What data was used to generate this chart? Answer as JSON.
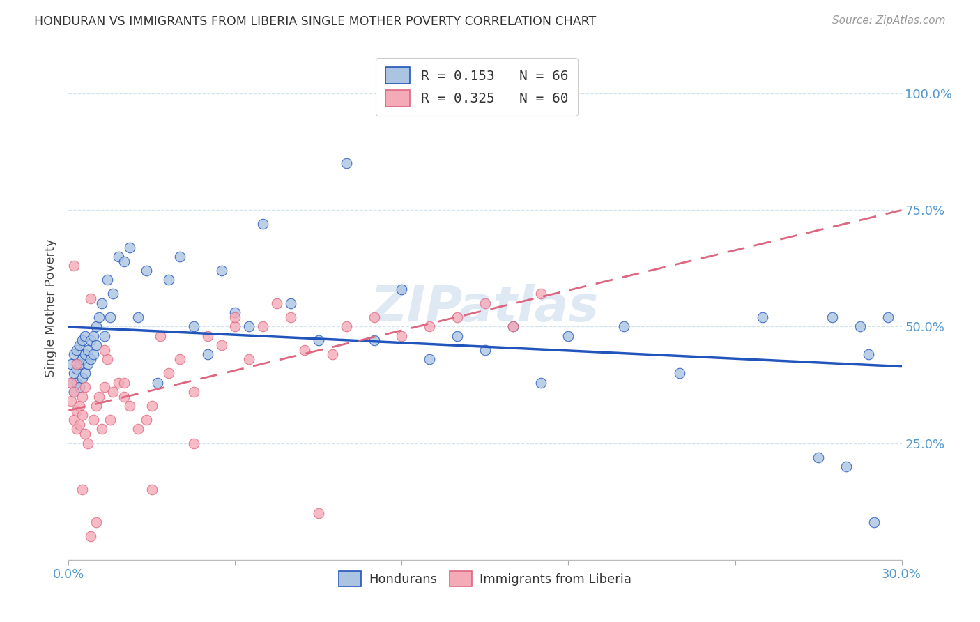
{
  "title": "HONDURAN VS IMMIGRANTS FROM LIBERIA SINGLE MOTHER POVERTY CORRELATION CHART",
  "source": "Source: ZipAtlas.com",
  "ylabel": "Single Mother Poverty",
  "xlim": [
    0.0,
    0.3
  ],
  "ylim": [
    0.0,
    1.08
  ],
  "legend_r1": "0.153",
  "legend_n1": "66",
  "legend_r2": "0.325",
  "legend_n2": "60",
  "hondurans_color": "#aac4e2",
  "liberia_color": "#f5aab8",
  "trend_blue": "#2255bb",
  "trend_pink": "#dd6680",
  "watermark": "ZIPatlas",
  "background_color": "#ffffff",
  "title_color": "#333333",
  "axis_color": "#5599cc",
  "grid_color": "#d0e4f0",
  "scatter_alpha": 0.8,
  "scatter_size": 110,
  "hondurans_x": [
    0.001,
    0.001,
    0.002,
    0.002,
    0.002,
    0.003,
    0.003,
    0.003,
    0.004,
    0.004,
    0.004,
    0.005,
    0.005,
    0.005,
    0.006,
    0.006,
    0.006,
    0.007,
    0.007,
    0.008,
    0.008,
    0.009,
    0.009,
    0.01,
    0.01,
    0.011,
    0.012,
    0.013,
    0.014,
    0.015,
    0.016,
    0.018,
    0.02,
    0.022,
    0.025,
    0.028,
    0.032,
    0.036,
    0.04,
    0.045,
    0.05,
    0.055,
    0.06,
    0.065,
    0.07,
    0.08,
    0.09,
    0.1,
    0.11,
    0.12,
    0.13,
    0.14,
    0.15,
    0.16,
    0.17,
    0.18,
    0.2,
    0.22,
    0.25,
    0.27,
    0.275,
    0.28,
    0.285,
    0.288,
    0.29,
    0.295
  ],
  "hondurans_y": [
    0.38,
    0.42,
    0.36,
    0.4,
    0.44,
    0.38,
    0.41,
    0.45,
    0.37,
    0.42,
    0.46,
    0.39,
    0.43,
    0.47,
    0.4,
    0.44,
    0.48,
    0.42,
    0.45,
    0.43,
    0.47,
    0.44,
    0.48,
    0.5,
    0.46,
    0.52,
    0.55,
    0.48,
    0.6,
    0.52,
    0.57,
    0.65,
    0.64,
    0.67,
    0.52,
    0.62,
    0.38,
    0.6,
    0.65,
    0.5,
    0.44,
    0.62,
    0.53,
    0.5,
    0.72,
    0.55,
    0.47,
    0.85,
    0.47,
    0.58,
    0.43,
    0.48,
    0.45,
    0.5,
    0.38,
    0.48,
    0.5,
    0.4,
    0.52,
    0.22,
    0.52,
    0.2,
    0.5,
    0.44,
    0.08,
    0.52
  ],
  "liberia_x": [
    0.001,
    0.001,
    0.002,
    0.002,
    0.003,
    0.003,
    0.004,
    0.004,
    0.005,
    0.005,
    0.006,
    0.006,
    0.007,
    0.008,
    0.009,
    0.01,
    0.011,
    0.012,
    0.013,
    0.014,
    0.015,
    0.016,
    0.018,
    0.02,
    0.022,
    0.025,
    0.028,
    0.03,
    0.033,
    0.036,
    0.04,
    0.045,
    0.05,
    0.055,
    0.06,
    0.065,
    0.07,
    0.075,
    0.08,
    0.085,
    0.09,
    0.095,
    0.1,
    0.11,
    0.12,
    0.13,
    0.14,
    0.15,
    0.16,
    0.17,
    0.013,
    0.01,
    0.02,
    0.045,
    0.06,
    0.03,
    0.008,
    0.005,
    0.003,
    0.002
  ],
  "liberia_y": [
    0.38,
    0.34,
    0.3,
    0.36,
    0.32,
    0.28,
    0.33,
    0.29,
    0.35,
    0.31,
    0.27,
    0.37,
    0.25,
    0.56,
    0.3,
    0.33,
    0.35,
    0.28,
    0.37,
    0.43,
    0.3,
    0.36,
    0.38,
    0.35,
    0.33,
    0.28,
    0.3,
    0.33,
    0.48,
    0.4,
    0.43,
    0.36,
    0.48,
    0.46,
    0.5,
    0.43,
    0.5,
    0.55,
    0.52,
    0.45,
    0.1,
    0.44,
    0.5,
    0.52,
    0.48,
    0.5,
    0.52,
    0.55,
    0.5,
    0.57,
    0.45,
    0.08,
    0.38,
    0.25,
    0.52,
    0.15,
    0.05,
    0.15,
    0.42,
    0.63
  ]
}
